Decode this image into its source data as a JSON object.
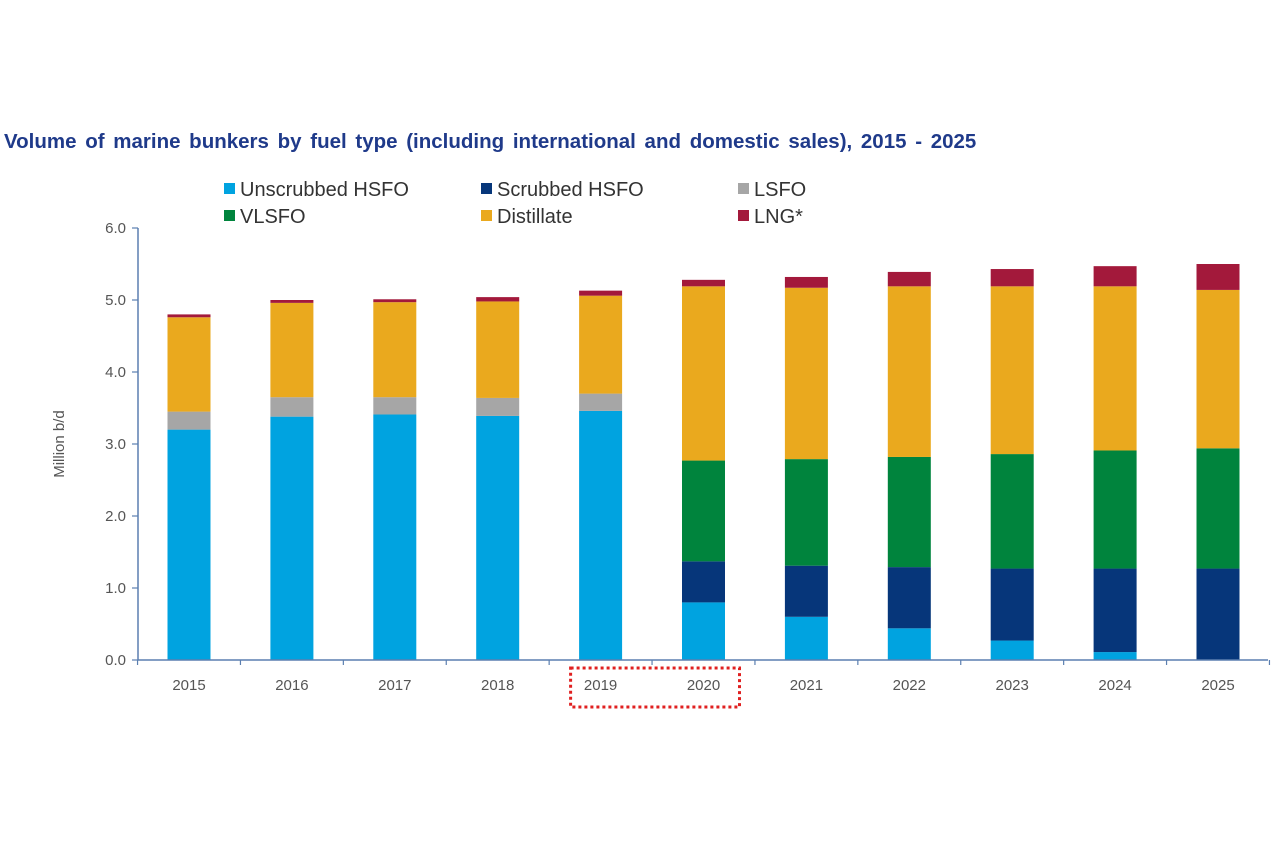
{
  "chart_data": {
    "type": "bar",
    "stacked": true,
    "title": "Volume of marine bunkers by fuel type (including international and domestic sales), 2015 - 2025",
    "ylabel": "Million b/d",
    "xlabel": "",
    "ylim": [
      0,
      6
    ],
    "yticks": [
      "0.0",
      "1.0",
      "2.0",
      "3.0",
      "4.0",
      "5.0",
      "6.0"
    ],
    "categories": [
      "2015",
      "2016",
      "2017",
      "2018",
      "2019",
      "2020",
      "2021",
      "2022",
      "2023",
      "2024",
      "2025"
    ],
    "highlighted_categories": [
      "2019",
      "2020"
    ],
    "grid": false,
    "legend_position": "top",
    "series": [
      {
        "name": "Unscrubbed HSFO",
        "color": "#00a3e0",
        "values": [
          3.2,
          3.38,
          3.41,
          3.39,
          3.46,
          0.8,
          0.6,
          0.44,
          0.27,
          0.11,
          0.0
        ]
      },
      {
        "name": "Scrubbed HSFO",
        "color": "#06367a",
        "values": [
          0.0,
          0.0,
          0.0,
          0.0,
          0.0,
          0.57,
          0.71,
          0.85,
          1.0,
          1.16,
          1.27
        ]
      },
      {
        "name": "LSFO",
        "color": "#a6a6a6",
        "values": [
          0.25,
          0.27,
          0.24,
          0.25,
          0.24,
          0.0,
          0.0,
          0.0,
          0.0,
          0.0,
          0.0
        ]
      },
      {
        "name": "VLSFO",
        "color": "#00843d",
        "values": [
          0.0,
          0.0,
          0.0,
          0.0,
          0.0,
          1.4,
          1.48,
          1.53,
          1.59,
          1.64,
          1.67
        ]
      },
      {
        "name": "Distillate",
        "color": "#eaa91e",
        "values": [
          1.31,
          1.31,
          1.32,
          1.34,
          1.36,
          2.42,
          2.38,
          2.37,
          2.33,
          2.28,
          2.2
        ]
      },
      {
        "name": "LNG*",
        "color": "#a3193b",
        "values": [
          0.04,
          0.04,
          0.04,
          0.06,
          0.07,
          0.09,
          0.15,
          0.2,
          0.24,
          0.28,
          0.36
        ]
      }
    ],
    "colors": {
      "axis": "#5b7fb0",
      "highlight_box": "#e02020",
      "title": "#1f3a8a"
    }
  }
}
